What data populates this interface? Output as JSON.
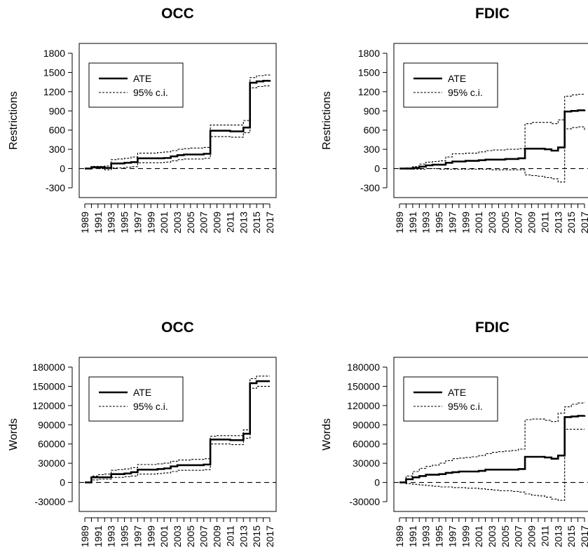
{
  "chart_data": [
    {
      "type": "line",
      "title": "OCC",
      "xlabel": "",
      "ylabel": "Restrictions",
      "ylim": [
        -300,
        1800
      ],
      "yticks": [
        "1800",
        "1500",
        "1200",
        "900",
        "600",
        "300",
        "0",
        "-300"
      ],
      "xticks": [
        "1989",
        "1991",
        "1993",
        "1995",
        "1997",
        "1999",
        "2001",
        "2003",
        "2005",
        "2007",
        "2009",
        "2011",
        "2013",
        "2015",
        "2017"
      ],
      "legend": [
        "ATE",
        "95% c.i."
      ],
      "legend_position": "top-left",
      "reference_line": 0,
      "x": [
        1989,
        1990,
        1991,
        1992,
        1993,
        1994,
        1995,
        1996,
        1997,
        1998,
        1999,
        2000,
        2001,
        2002,
        2003,
        2004,
        2005,
        2006,
        2007,
        2008,
        2009,
        2010,
        2011,
        2012,
        2013,
        2014,
        2015,
        2016,
        2017
      ],
      "series": [
        {
          "name": "ATE",
          "values": [
            0,
            20,
            20,
            10,
            80,
            80,
            90,
            100,
            160,
            160,
            160,
            160,
            165,
            190,
            210,
            220,
            220,
            220,
            230,
            590,
            590,
            590,
            580,
            580,
            640,
            1340,
            1360,
            1370,
            1380
          ]
        },
        {
          "values": [
            0,
            35,
            35,
            40,
            140,
            150,
            160,
            180,
            240,
            240,
            240,
            250,
            260,
            280,
            300,
            310,
            320,
            320,
            330,
            680,
            680,
            680,
            680,
            680,
            750,
            1420,
            1450,
            1460,
            1470
          ]
        },
        {
          "values": [
            0,
            5,
            0,
            -20,
            10,
            10,
            20,
            30,
            90,
            90,
            90,
            90,
            100,
            120,
            140,
            150,
            150,
            150,
            160,
            500,
            500,
            500,
            490,
            490,
            560,
            1260,
            1280,
            1290,
            1300
          ]
        }
      ]
    },
    {
      "type": "line",
      "title": "FDIC",
      "xlabel": "",
      "ylabel": "Restrictions",
      "ylim": [
        -300,
        1800
      ],
      "yticks": [
        "1800",
        "1500",
        "1200",
        "900",
        "600",
        "300",
        "0",
        "-300"
      ],
      "xticks": [
        "1989",
        "1991",
        "1993",
        "1995",
        "1997",
        "1999",
        "2001",
        "2003",
        "2005",
        "2007",
        "2009",
        "2011",
        "2013",
        "2015",
        "2017"
      ],
      "legend": [
        "ATE",
        "95% c.i."
      ],
      "legend_position": "top-left",
      "reference_line": 0,
      "x": [
        1989,
        1990,
        1991,
        1992,
        1993,
        1994,
        1995,
        1996,
        1997,
        1998,
        1999,
        2000,
        2001,
        2002,
        2003,
        2004,
        2005,
        2006,
        2007,
        2008,
        2009,
        2010,
        2011,
        2012,
        2013,
        2014,
        2015,
        2016,
        2017
      ],
      "series": [
        {
          "name": "ATE",
          "values": [
            0,
            0,
            10,
            30,
            50,
            60,
            60,
            90,
            110,
            110,
            120,
            120,
            130,
            140,
            140,
            140,
            150,
            150,
            160,
            310,
            310,
            310,
            300,
            280,
            330,
            890,
            900,
            910,
            920
          ]
        },
        {
          "values": [
            0,
            10,
            30,
            70,
            100,
            110,
            120,
            180,
            230,
            230,
            240,
            240,
            260,
            280,
            290,
            290,
            300,
            300,
            310,
            700,
            720,
            720,
            720,
            700,
            760,
            1130,
            1150,
            1160,
            1170
          ]
        },
        {
          "values": [
            0,
            -10,
            -10,
            -10,
            0,
            0,
            -10,
            -10,
            -10,
            -10,
            -10,
            -10,
            -10,
            -10,
            -20,
            -20,
            -20,
            -20,
            -20,
            -100,
            -110,
            -120,
            -140,
            -160,
            -210,
            620,
            640,
            650,
            600
          ]
        }
      ]
    },
    {
      "type": "line",
      "title": "OCC",
      "xlabel": "",
      "ylabel": "Words",
      "ylim": [
        -30000,
        180000
      ],
      "yticks": [
        "180000",
        "150000",
        "120000",
        "90000",
        "60000",
        "30000",
        "0",
        "-30000"
      ],
      "xticks": [
        "1989",
        "1991",
        "1993",
        "1995",
        "1997",
        "1999",
        "2001",
        "2003",
        "2005",
        "2007",
        "2009",
        "2011",
        "2013",
        "2015",
        "2017"
      ],
      "legend": [
        "ATE",
        "95% c.i."
      ],
      "legend_position": "top-left",
      "reference_line": 0,
      "x": [
        1989,
        1990,
        1991,
        1992,
        1993,
        1994,
        1995,
        1996,
        1997,
        1998,
        1999,
        2000,
        2001,
        2002,
        2003,
        2004,
        2005,
        2006,
        2007,
        2008,
        2009,
        2010,
        2011,
        2012,
        2013,
        2014,
        2015,
        2016,
        2017
      ],
      "series": [
        {
          "name": "ATE",
          "values": [
            0,
            8000,
            8000,
            8000,
            13000,
            13000,
            14000,
            16000,
            20000,
            20000,
            20000,
            21000,
            22000,
            25000,
            27000,
            27000,
            27000,
            27000,
            28000,
            67000,
            67000,
            67000,
            66000,
            66000,
            76000,
            155000,
            158000,
            158000,
            158000
          ]
        },
        {
          "values": [
            0,
            10000,
            12000,
            13000,
            19000,
            20000,
            21000,
            23000,
            28000,
            28000,
            28000,
            29000,
            30000,
            33000,
            35000,
            35000,
            36000,
            36000,
            37000,
            72000,
            73000,
            73000,
            73000,
            73000,
            82000,
            162000,
            166000,
            166000,
            166000
          ]
        },
        {
          "values": [
            0,
            4000,
            5000,
            5000,
            8000,
            8000,
            9000,
            10000,
            13000,
            13000,
            13000,
            14000,
            15000,
            17000,
            19000,
            19000,
            19000,
            19000,
            20000,
            60000,
            60000,
            60000,
            59000,
            59000,
            69000,
            147000,
            150000,
            150000,
            150000
          ]
        }
      ]
    },
    {
      "type": "line",
      "title": "FDIC",
      "xlabel": "",
      "ylabel": "Words",
      "ylim": [
        -30000,
        180000
      ],
      "yticks": [
        "180000",
        "150000",
        "120000",
        "90000",
        "60000",
        "30000",
        "0",
        "-30000"
      ],
      "xticks": [
        "1989",
        "1991",
        "1993",
        "1995",
        "1997",
        "1999",
        "2001",
        "2003",
        "2005",
        "2007",
        "2009",
        "2011",
        "2013",
        "2015",
        "2017"
      ],
      "legend": [
        "ATE",
        "95% c.i."
      ],
      "legend_position": "top-left",
      "reference_line": 0,
      "x": [
        1989,
        1990,
        1991,
        1992,
        1993,
        1994,
        1995,
        1996,
        1997,
        1998,
        1999,
        2000,
        2001,
        2002,
        2003,
        2004,
        2005,
        2006,
        2007,
        2008,
        2009,
        2010,
        2011,
        2012,
        2013,
        2014,
        2015,
        2016,
        2017
      ],
      "series": [
        {
          "name": "ATE",
          "values": [
            0,
            5000,
            8000,
            10000,
            12000,
            12000,
            13000,
            15000,
            16000,
            17000,
            17000,
            17000,
            18000,
            20000,
            20000,
            20000,
            20000,
            20000,
            21000,
            40000,
            40000,
            40000,
            39000,
            37000,
            42000,
            102000,
            103000,
            104000,
            105000
          ]
        },
        {
          "values": [
            0,
            10000,
            17000,
            22000,
            25000,
            27000,
            30000,
            34000,
            37000,
            38000,
            39000,
            40000,
            42000,
            45000,
            47000,
            48000,
            49000,
            50000,
            52000,
            98000,
            99000,
            99000,
            97000,
            95000,
            108000,
            118000,
            122000,
            124000,
            125000
          ]
        },
        {
          "values": [
            0,
            -2000,
            -3000,
            -4000,
            -5000,
            -6000,
            -7000,
            -7000,
            -8000,
            -8000,
            -9000,
            -9000,
            -10000,
            -11000,
            -12000,
            -13000,
            -13000,
            -14000,
            -15000,
            -18000,
            -20000,
            -21000,
            -23000,
            -26000,
            -28000,
            83000,
            83000,
            83000,
            83000
          ]
        }
      ]
    }
  ]
}
